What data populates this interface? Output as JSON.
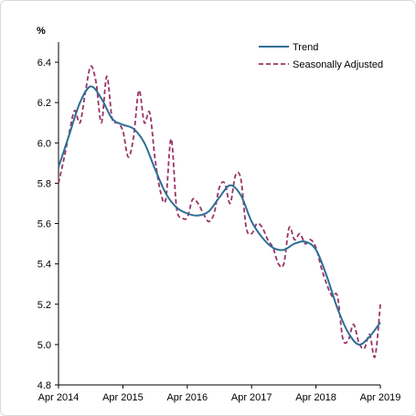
{
  "chart_data": {
    "type": "line",
    "ylabel": "%",
    "ylim": [
      4.8,
      6.5
    ],
    "yticks": [
      4.8,
      5.0,
      5.2,
      5.4,
      5.6,
      5.8,
      6.0,
      6.2,
      6.4
    ],
    "ytick_labels": [
      "4.8",
      "5.0",
      "5.2",
      "5.4",
      "5.6",
      "5.8",
      "6.0",
      "6.2",
      "6.4"
    ],
    "xlim": [
      "2014-04",
      "2019-04"
    ],
    "xticks": [
      "2014-04",
      "2015-04",
      "2016-04",
      "2017-04",
      "2018-04",
      "2019-04"
    ],
    "xtick_labels": [
      "Apr 2014",
      "Apr 2015",
      "Apr 2016",
      "Apr 2017",
      "Apr 2018",
      "Apr 2019"
    ],
    "legend_position": "top-right",
    "grid": false,
    "series": [
      {
        "name": "Trend",
        "color": "#2e6f95",
        "style": "solid",
        "x": [
          "2014-04",
          "2014-06",
          "2014-08",
          "2014-10",
          "2014-12",
          "2015-02",
          "2015-04",
          "2015-06",
          "2015-08",
          "2015-10",
          "2015-12",
          "2016-02",
          "2016-04",
          "2016-06",
          "2016-08",
          "2016-10",
          "2016-12",
          "2017-02",
          "2017-04",
          "2017-06",
          "2017-08",
          "2017-10",
          "2017-12",
          "2018-02",
          "2018-04",
          "2018-06",
          "2018-08",
          "2018-10",
          "2018-12",
          "2019-02",
          "2019-04"
        ],
        "values": [
          5.88,
          6.04,
          6.2,
          6.28,
          6.22,
          6.12,
          6.09,
          6.07,
          6.0,
          5.87,
          5.75,
          5.68,
          5.65,
          5.64,
          5.66,
          5.73,
          5.79,
          5.74,
          5.61,
          5.53,
          5.48,
          5.47,
          5.5,
          5.51,
          5.47,
          5.34,
          5.18,
          5.06,
          5.0,
          5.04,
          5.11
        ]
      },
      {
        "name": "Seasonally Adjusted",
        "color": "#993366",
        "style": "dashed",
        "x": [
          "2014-04",
          "2014-05",
          "2014-06",
          "2014-07",
          "2014-08",
          "2014-09",
          "2014-10",
          "2014-11",
          "2014-12",
          "2015-01",
          "2015-02",
          "2015-03",
          "2015-04",
          "2015-05",
          "2015-06",
          "2015-07",
          "2015-08",
          "2015-09",
          "2015-10",
          "2015-11",
          "2015-12",
          "2016-01",
          "2016-02",
          "2016-03",
          "2016-04",
          "2016-05",
          "2016-06",
          "2016-07",
          "2016-08",
          "2016-09",
          "2016-10",
          "2016-11",
          "2016-12",
          "2017-01",
          "2017-02",
          "2017-03",
          "2017-04",
          "2017-05",
          "2017-06",
          "2017-07",
          "2017-08",
          "2017-09",
          "2017-10",
          "2017-11",
          "2017-12",
          "2018-01",
          "2018-02",
          "2018-03",
          "2018-04",
          "2018-05",
          "2018-06",
          "2018-07",
          "2018-08",
          "2018-09",
          "2018-10",
          "2018-11",
          "2018-12",
          "2019-01",
          "2019-02",
          "2019-03",
          "2019-04"
        ],
        "values": [
          5.8,
          5.92,
          6.05,
          6.16,
          6.1,
          6.25,
          6.38,
          6.3,
          6.1,
          6.33,
          6.12,
          6.1,
          6.06,
          5.93,
          6.03,
          6.26,
          6.1,
          6.15,
          5.92,
          5.76,
          5.72,
          6.02,
          5.68,
          5.63,
          5.63,
          5.72,
          5.7,
          5.65,
          5.61,
          5.65,
          5.78,
          5.8,
          5.7,
          5.84,
          5.82,
          5.58,
          5.55,
          5.6,
          5.58,
          5.52,
          5.48,
          5.4,
          5.4,
          5.58,
          5.52,
          5.55,
          5.5,
          5.52,
          5.48,
          5.38,
          5.3,
          5.24,
          5.24,
          5.03,
          5.02,
          5.1,
          5.01,
          4.98,
          5.05,
          4.94,
          5.2
        ]
      }
    ]
  }
}
